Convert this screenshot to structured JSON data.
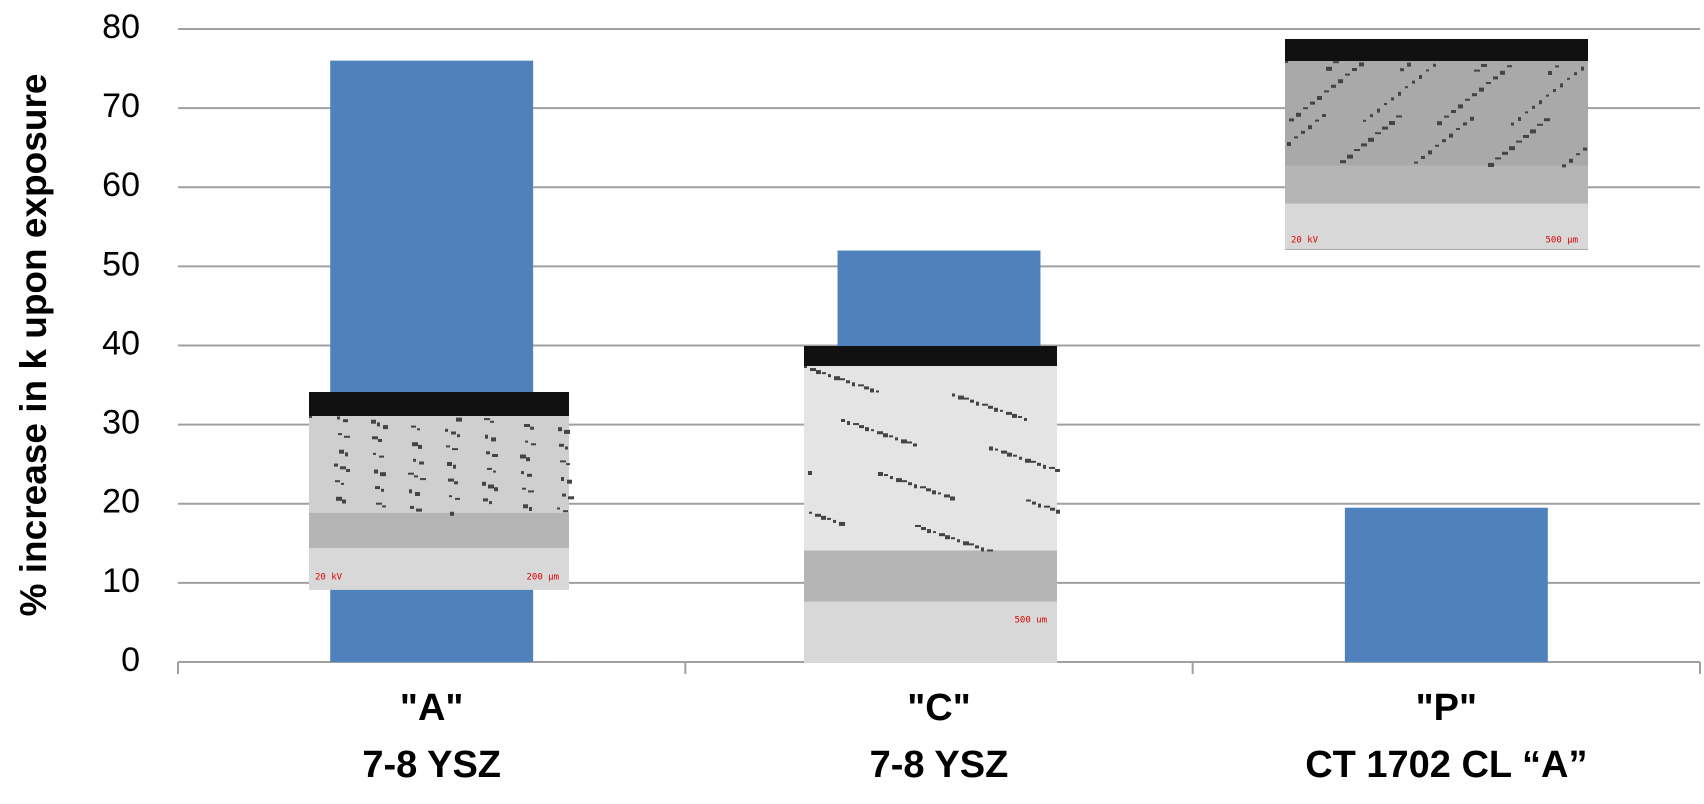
{
  "chart_data": {
    "type": "bar",
    "y_label": "% increase in k upon exposure",
    "categories": [
      [
        "\"A\"",
        "7-8 YSZ"
      ],
      [
        "\"C\"",
        "7-8 YSZ"
      ],
      [
        "\"P\"",
        "CT 1702 CL “A”"
      ]
    ],
    "values": [
      76,
      52,
      19.5
    ],
    "color": "#4f81bd",
    "ylim": [
      0,
      80
    ],
    "yticks": [
      0,
      10,
      20,
      30,
      40,
      50,
      60,
      70,
      80
    ],
    "grid": true,
    "annotations": [
      "20 kV",
      "200 µm",
      "500 um",
      "20 kV",
      "500 µm"
    ]
  }
}
